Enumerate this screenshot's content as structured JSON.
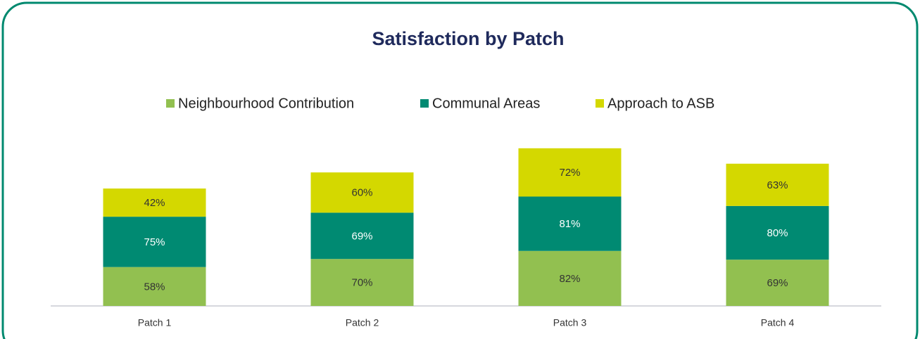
{
  "chart_data": {
    "type": "stacked_bar",
    "title": "Satisfaction by Patch",
    "categories": [
      "Patch 1",
      "Patch 2",
      "Patch 3",
      "Patch 4"
    ],
    "series": [
      {
        "name": "Neighbourhood Contribution",
        "color": "#92c050",
        "values": [
          58,
          70,
          82,
          69
        ],
        "value_labels": [
          "58%",
          "70%",
          "82%",
          "69%"
        ]
      },
      {
        "name": "Communal Areas",
        "color": "#008a72",
        "values": [
          75,
          69,
          81,
          80
        ],
        "value_labels": [
          "75%",
          "69%",
          "81%",
          "80%"
        ]
      },
      {
        "name": "Approach to ASB",
        "color": "#d4d800",
        "values": [
          42,
          60,
          72,
          63
        ],
        "value_labels": [
          "42%",
          "60%",
          "72%",
          "63%"
        ]
      }
    ],
    "legend": "top"
  }
}
